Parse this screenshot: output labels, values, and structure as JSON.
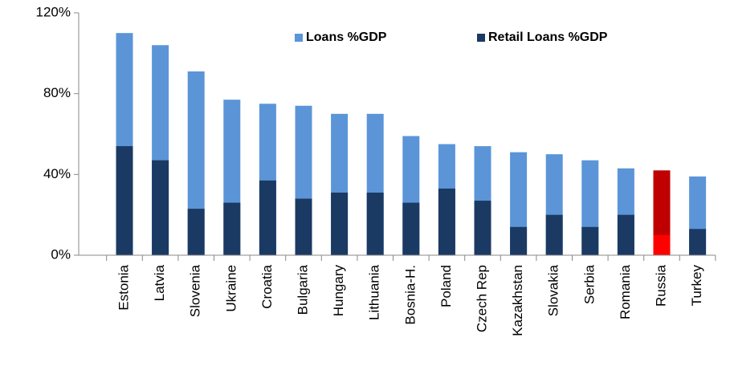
{
  "chart_data": {
    "type": "bar",
    "categories": [
      "Estonia",
      "Latvia",
      "Slovenia",
      "Ukraine",
      "Croatia",
      "Bulgaria",
      "Hungary",
      "Lithuania",
      "Bosnia-H.",
      "Poland",
      "Czech Rep",
      "Kazakhstan",
      "Slovakia",
      "Serbia",
      "Romania",
      "Russia",
      "Turkey"
    ],
    "series": [
      {
        "name": "Loans %GDP",
        "color": "#5b95d8",
        "colors": [
          "#5b95d8",
          "#5b95d8",
          "#5b95d8",
          "#5b95d8",
          "#5b95d8",
          "#5b95d8",
          "#5b95d8",
          "#5b95d8",
          "#5b95d8",
          "#5b95d8",
          "#5b95d8",
          "#5b95d8",
          "#5b95d8",
          "#5b95d8",
          "#5b95d8",
          "#c00000",
          "#5b95d8"
        ],
        "values": [
          110,
          104,
          91,
          77,
          75,
          74,
          70,
          70,
          59,
          55,
          54,
          51,
          50,
          47,
          43,
          42,
          39
        ]
      },
      {
        "name": "Retail Loans %GDP",
        "color": "#1b3a63",
        "colors": [
          "#1b3a63",
          "#1b3a63",
          "#1b3a63",
          "#1b3a63",
          "#1b3a63",
          "#1b3a63",
          "#1b3a63",
          "#1b3a63",
          "#1b3a63",
          "#1b3a63",
          "#1b3a63",
          "#1b3a63",
          "#1b3a63",
          "#1b3a63",
          "#1b3a63",
          "#ff0000",
          "#1b3a63"
        ],
        "values": [
          54,
          47,
          23,
          26,
          37,
          28,
          31,
          31,
          26,
          33,
          27,
          14,
          20,
          14,
          20,
          10,
          13
        ]
      }
    ],
    "ylim": [
      0,
      120
    ],
    "yticks": [
      {
        "value": 0,
        "label": "0%"
      },
      {
        "value": 40,
        "label": "40%"
      },
      {
        "value": 80,
        "label": "80%"
      },
      {
        "value": 120,
        "label": "120%"
      }
    ],
    "legend": "top",
    "grid": false
  }
}
